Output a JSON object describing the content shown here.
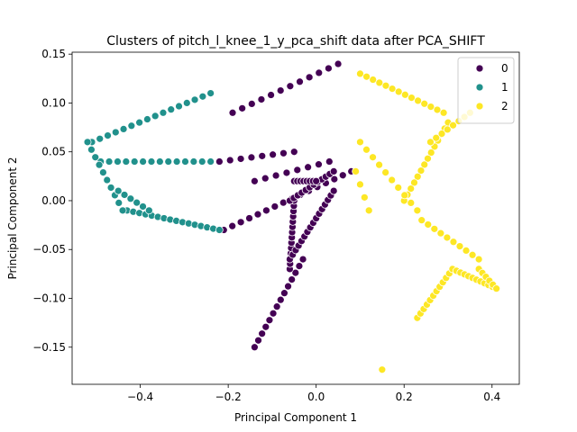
{
  "chart_data": {
    "type": "scatter",
    "title": "Clusters of pitch_l_knee_1_y_pca_shift data after PCA_SHIFT",
    "xlabel": "Principal Component 1",
    "ylabel": "Principal Component 2",
    "xlim": [
      -0.555,
      0.462
    ],
    "ylim": [
      -0.188,
      0.152
    ],
    "xticks": [
      -0.4,
      -0.2,
      0.0,
      0.2,
      0.4
    ],
    "xtick_labels": [
      "−0.4",
      "−0.2",
      "0.0",
      "0.2",
      "0.4"
    ],
    "yticks": [
      -0.15,
      -0.1,
      -0.05,
      0.0,
      0.05,
      0.1,
      0.15
    ],
    "ytick_labels": [
      "−0.15",
      "−0.10",
      "−0.05",
      "0.00",
      "0.05",
      "0.10",
      "0.15"
    ],
    "grid": false,
    "legend": {
      "placement": "top-right"
    },
    "series": [
      {
        "name": "0",
        "color": "#440154",
        "segments": [
          {
            "from": [
              -0.19,
              0.09
            ],
            "to": [
              0.05,
              0.14
            ],
            "n": 12
          },
          {
            "from": [
              -0.21,
              -0.03
            ],
            "to": [
              0.08,
              0.03
            ],
            "n": 16
          },
          {
            "from": [
              -0.22,
              0.04
            ],
            "to": [
              -0.05,
              0.05
            ],
            "n": 8
          },
          {
            "from": [
              -0.14,
              0.02
            ],
            "to": [
              0.03,
              0.04
            ],
            "n": 8
          },
          {
            "from": [
              -0.14,
              -0.15
            ],
            "to": [
              -0.03,
              -0.06
            ],
            "n": 14
          },
          {
            "from": [
              -0.06,
              -0.07
            ],
            "to": [
              -0.05,
              0.0
            ],
            "n": 14
          },
          {
            "from": [
              -0.06,
              -0.06
            ],
            "to": [
              0.04,
              0.01
            ],
            "n": 16
          },
          {
            "from": [
              -0.06,
              0.0
            ],
            "to": [
              0.04,
              0.03
            ],
            "n": 12
          },
          {
            "from": [
              -0.05,
              0.02
            ],
            "to": [
              0.0,
              0.02
            ],
            "n": 8
          }
        ]
      },
      {
        "name": "1",
        "color": "#21918c",
        "segments": [
          {
            "from": [
              -0.51,
              0.06
            ],
            "to": [
              -0.24,
              0.11
            ],
            "n": 16
          },
          {
            "from": [
              -0.49,
              0.04
            ],
            "to": [
              -0.24,
              0.04
            ],
            "n": 14
          },
          {
            "from": [
              -0.43,
              -0.01
            ],
            "to": [
              -0.22,
              -0.03
            ],
            "n": 16
          },
          {
            "from": [
              -0.52,
              0.06
            ],
            "to": [
              -0.44,
              -0.01
            ],
            "n": 10
          },
          {
            "from": [
              -0.45,
              0.01
            ],
            "to": [
              -0.38,
              -0.01
            ],
            "n": 6
          }
        ]
      },
      {
        "name": "2",
        "color": "#fde725",
        "segments": [
          {
            "from": [
              0.1,
              0.13
            ],
            "to": [
              0.29,
              0.09
            ],
            "n": 14
          },
          {
            "from": [
              0.3,
              0.08
            ],
            "to": [
              0.2,
              0.0
            ],
            "n": 14
          },
          {
            "from": [
              0.1,
              0.06
            ],
            "to": [
              0.23,
              -0.01
            ],
            "n": 10
          },
          {
            "from": [
              0.24,
              -0.02
            ],
            "to": [
              0.37,
              -0.06
            ],
            "n": 10
          },
          {
            "from": [
              0.26,
              0.06
            ],
            "to": [
              0.35,
              0.09
            ],
            "n": 8
          },
          {
            "from": [
              0.23,
              -0.12
            ],
            "to": [
              0.31,
              -0.07
            ],
            "n": 12
          },
          {
            "from": [
              0.31,
              -0.07
            ],
            "to": [
              0.41,
              -0.09
            ],
            "n": 12
          },
          {
            "from": [
              0.37,
              -0.07
            ],
            "to": [
              0.41,
              -0.09
            ],
            "n": 6
          },
          {
            "from": [
              0.09,
              0.03
            ],
            "to": [
              0.12,
              -0.01
            ],
            "n": 4
          },
          {
            "from": [
              0.15,
              -0.173
            ],
            "to": [
              0.15,
              -0.173
            ],
            "n": 1
          }
        ]
      }
    ]
  }
}
